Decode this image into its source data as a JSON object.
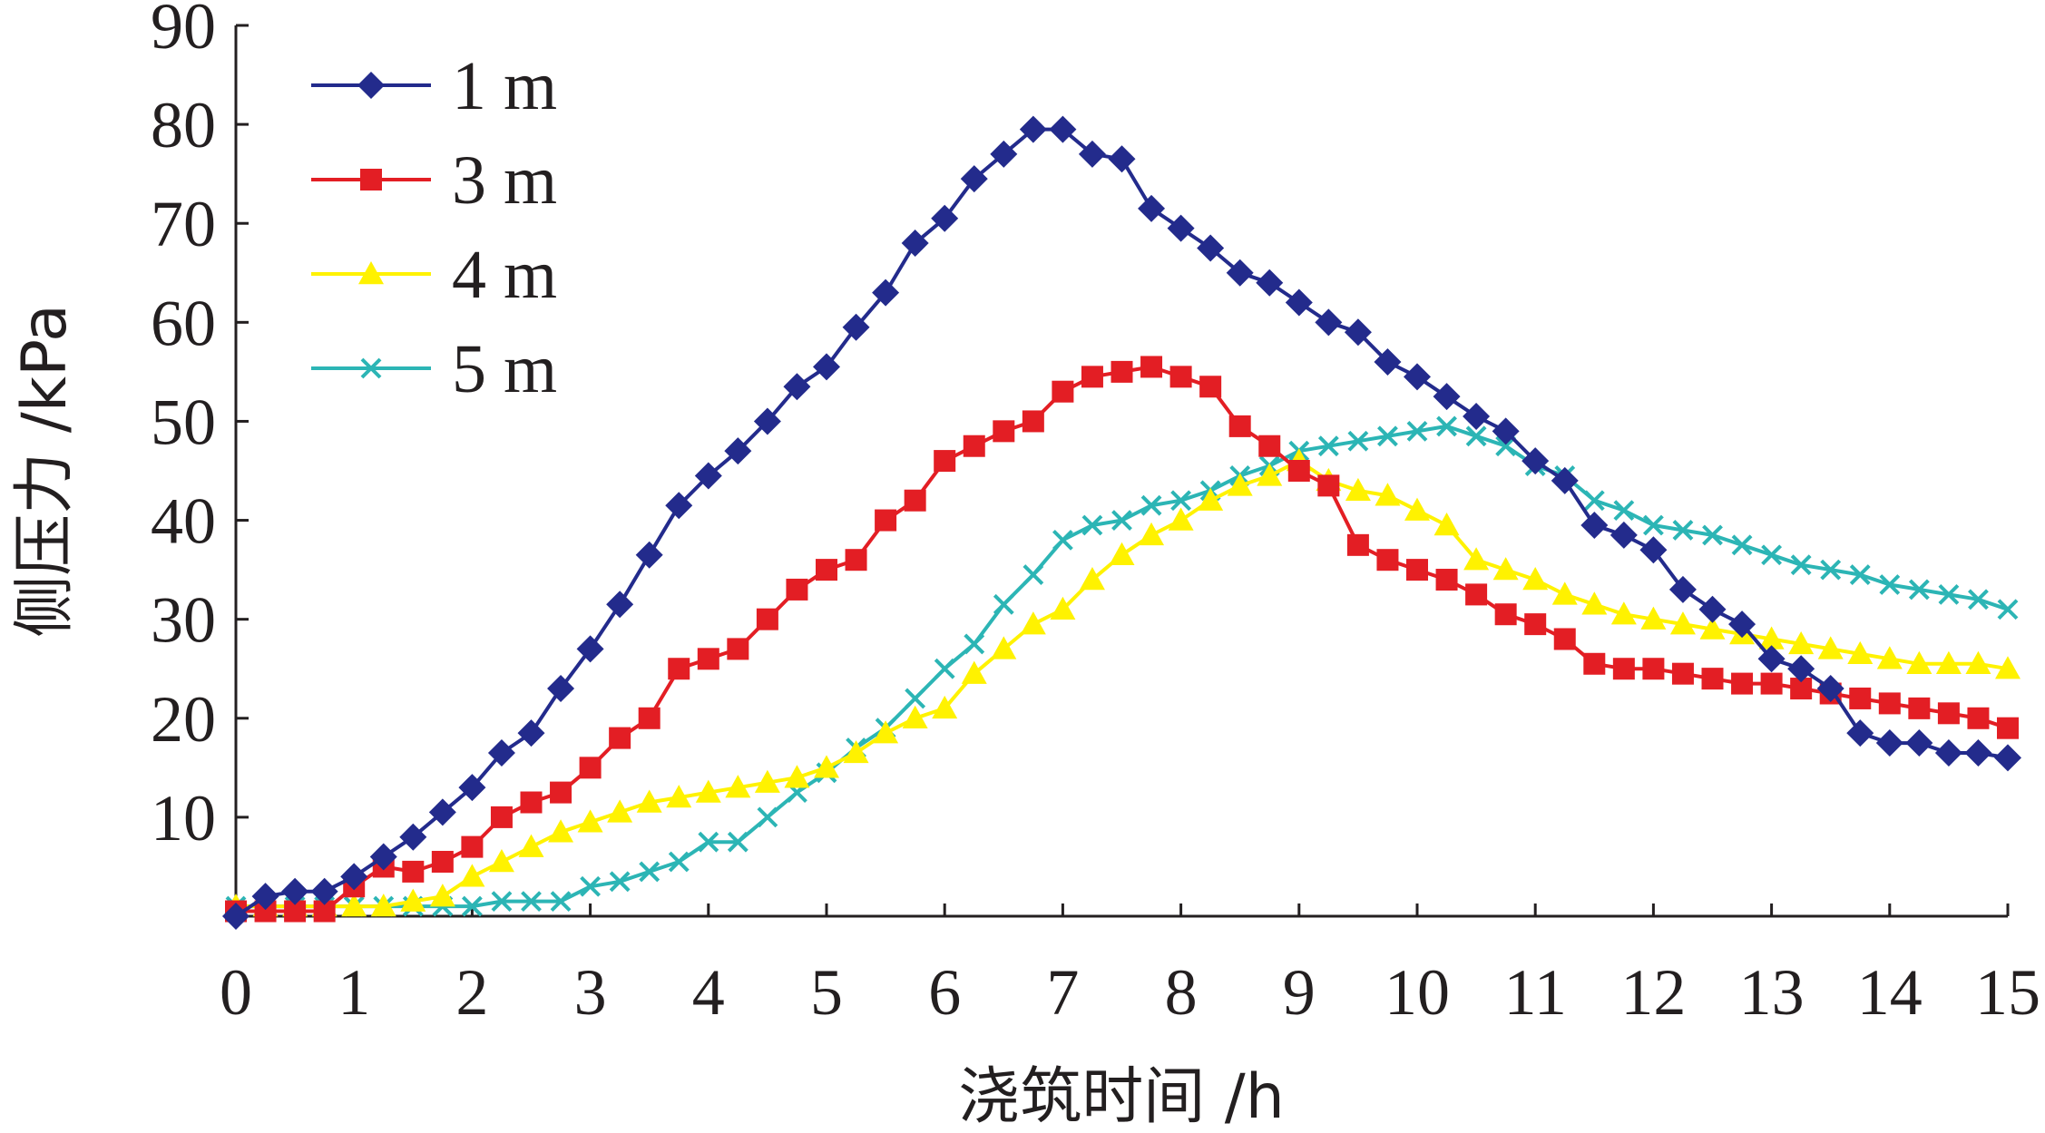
{
  "chart_data": {
    "type": "line",
    "title": "",
    "xlabel": "浇筑时间 /h",
    "ylabel": "侧压力 /kPa",
    "xlim": [
      0,
      15
    ],
    "ylim": [
      0,
      90
    ],
    "x_ticks": [
      "0",
      "1",
      "2",
      "3",
      "4",
      "5",
      "6",
      "7",
      "8",
      "9",
      "10",
      "11",
      "12",
      "13",
      "14",
      "15"
    ],
    "y_ticks": [
      "10",
      "20",
      "30",
      "40",
      "50",
      "60",
      "70",
      "80",
      "90"
    ],
    "grid": false,
    "legend_position": "top-left",
    "series": [
      {
        "name": "1 m",
        "color": "#232b8c",
        "marker": "diamond",
        "x": [
          0,
          0.25,
          0.5,
          0.75,
          1,
          1.25,
          1.5,
          1.75,
          2,
          2.25,
          2.5,
          2.75,
          3,
          3.25,
          3.5,
          3.75,
          4,
          4.25,
          4.5,
          4.75,
          5,
          5.25,
          5.5,
          5.75,
          6,
          6.25,
          6.5,
          6.75,
          7,
          7.25,
          7.5,
          7.75,
          8,
          8.25,
          8.5,
          8.75,
          9,
          9.25,
          9.5,
          9.75,
          10,
          10.25,
          10.5,
          10.75,
          11,
          11.25,
          11.5,
          11.75,
          12,
          12.25,
          12.5,
          12.75,
          13,
          13.25,
          13.5,
          13.75,
          14,
          14.25,
          14.5,
          14.75,
          15
        ],
        "values": [
          0,
          2,
          2.5,
          2.5,
          4,
          6,
          8,
          10.5,
          13,
          16.5,
          18.5,
          23,
          27,
          31.5,
          36.5,
          41.5,
          44.5,
          47,
          50,
          53.5,
          55.5,
          59.5,
          63,
          68,
          70.5,
          74.5,
          77,
          79.5,
          79.5,
          77,
          76.5,
          71.5,
          69.5,
          67.5,
          65,
          64,
          62,
          60,
          59,
          56,
          54.5,
          52.5,
          50.5,
          49,
          46,
          44,
          39.5,
          38.5,
          37,
          33,
          31,
          29.5,
          26,
          25,
          23,
          18.5,
          17.5,
          17.5,
          16.5,
          16.5,
          16
        ]
      },
      {
        "name": "3 m",
        "color": "#e31e24",
        "marker": "square",
        "x": [
          0,
          0.25,
          0.5,
          0.75,
          1,
          1.25,
          1.5,
          1.75,
          2,
          2.25,
          2.5,
          2.75,
          3,
          3.25,
          3.5,
          3.75,
          4,
          4.25,
          4.5,
          4.75,
          5,
          5.25,
          5.5,
          5.75,
          6,
          6.25,
          6.5,
          6.75,
          7,
          7.25,
          7.5,
          7.75,
          8,
          8.25,
          8.5,
          8.75,
          9,
          9.25,
          9.5,
          9.75,
          10,
          10.25,
          10.5,
          10.75,
          11,
          11.25,
          11.5,
          11.75,
          12,
          12.25,
          12.5,
          12.75,
          13,
          13.25,
          13.5,
          13.75,
          14,
          14.25,
          14.5,
          14.75,
          15
        ],
        "values": [
          0.5,
          0.5,
          0.5,
          0.5,
          3,
          5,
          4.5,
          5.5,
          7,
          10,
          11.5,
          12.5,
          15,
          18,
          20,
          25,
          26,
          27,
          30,
          33,
          35,
          36,
          40,
          42,
          46,
          47.5,
          49,
          50,
          53,
          54.5,
          55,
          55.5,
          54.5,
          53.5,
          49.5,
          47.5,
          45,
          43.5,
          37.5,
          36,
          35,
          34,
          32.5,
          30.5,
          29.5,
          28,
          25.5,
          25,
          25,
          24.5,
          24,
          23.5,
          23.5,
          23,
          22.5,
          22,
          21.5,
          21,
          20.5,
          20,
          19
        ]
      },
      {
        "name": "4 m",
        "color": "#fff200",
        "marker": "triangle",
        "x": [
          0,
          0.25,
          0.5,
          0.75,
          1,
          1.25,
          1.5,
          1.75,
          2,
          2.25,
          2.5,
          2.75,
          3,
          3.25,
          3.5,
          3.75,
          4,
          4.25,
          4.5,
          4.75,
          5,
          5.25,
          5.5,
          5.75,
          6,
          6.25,
          6.5,
          6.75,
          7,
          7.25,
          7.5,
          7.75,
          8,
          8.25,
          8.5,
          8.75,
          9,
          9.25,
          9.5,
          9.75,
          10,
          10.25,
          10.5,
          10.75,
          11,
          11.25,
          11.5,
          11.75,
          12,
          12.25,
          12.5,
          12.75,
          13,
          13.25,
          13.5,
          13.75,
          14,
          14.25,
          14.5,
          14.75,
          15
        ],
        "values": [
          1,
          1,
          1,
          1,
          1,
          1,
          1.5,
          2,
          4,
          5.5,
          7,
          8.5,
          9.5,
          10.5,
          11.5,
          12,
          12.5,
          13,
          13.5,
          14,
          15,
          16.5,
          18.5,
          20,
          21,
          24.5,
          27,
          29.5,
          31,
          34,
          36.5,
          38.5,
          40,
          42,
          43.5,
          44.5,
          46,
          44,
          43,
          42.5,
          41,
          39.5,
          36,
          35,
          34,
          32.5,
          31.5,
          30.5,
          30,
          29.5,
          29,
          28.5,
          28,
          27.5,
          27,
          26.5,
          26,
          25.5,
          25.5,
          25.5,
          25
        ]
      },
      {
        "name": "5 m",
        "color": "#2cb5b5",
        "marker": "x",
        "x": [
          0,
          0.25,
          0.5,
          0.75,
          1,
          1.25,
          1.5,
          1.75,
          2,
          2.25,
          2.5,
          2.75,
          3,
          3.25,
          3.5,
          3.75,
          4,
          4.25,
          4.5,
          4.75,
          5,
          5.25,
          5.5,
          5.75,
          6,
          6.25,
          6.5,
          6.75,
          7,
          7.25,
          7.5,
          7.75,
          8,
          8.25,
          8.5,
          8.75,
          9,
          9.25,
          9.5,
          9.75,
          10,
          10.25,
          10.5,
          10.75,
          11,
          11.25,
          11.5,
          11.75,
          12,
          12.25,
          12.5,
          12.75,
          13,
          13.25,
          13.5,
          13.75,
          14,
          14.25,
          14.5,
          14.75,
          15
        ],
        "values": [
          1,
          1,
          1,
          1,
          1,
          1,
          1,
          1,
          1,
          1.5,
          1.5,
          1.5,
          3,
          3.5,
          4.5,
          5.5,
          7.5,
          7.5,
          10,
          12.5,
          14.5,
          17,
          19,
          22,
          25,
          27.5,
          31.5,
          34.5,
          38,
          39.5,
          40,
          41.5,
          42,
          43,
          44.5,
          45.5,
          47,
          47.5,
          48,
          48.5,
          49,
          49.5,
          48.5,
          47.5,
          45.5,
          44.5,
          42,
          41,
          39.5,
          39,
          38.5,
          37.5,
          36.5,
          35.5,
          35,
          34.5,
          33.5,
          33,
          32.5,
          32,
          31
        ]
      }
    ]
  }
}
